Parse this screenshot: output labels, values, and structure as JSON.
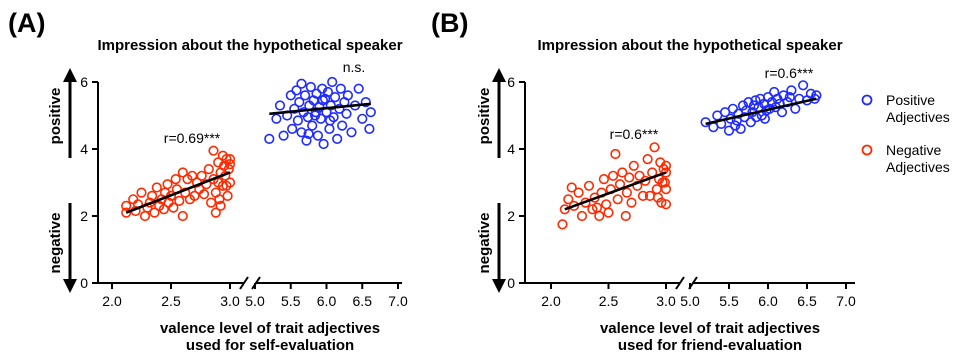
{
  "colors": {
    "positive": "#1f2bff",
    "negative": "#ff2a00",
    "axis": "#000000",
    "fit": "#000000"
  },
  "y_side_labels": {
    "top": "positive",
    "bottom": "negative"
  },
  "legend": [
    {
      "label_lines": [
        "Positive",
        "Adjectives"
      ],
      "color": "#1f2bff"
    },
    {
      "label_lines": [
        "Negative",
        "Adjectives"
      ],
      "color": "#ff2a00"
    }
  ],
  "chart_data": [
    {
      "type": "scatter",
      "panel_label": "(A)",
      "title": "Impression about the hypothetical speaker",
      "xlabel_lines": [
        "valence level of trait adjectives",
        "used for self-evaluation"
      ],
      "ylim": [
        0,
        6
      ],
      "yticks": [
        "0",
        "2",
        "4",
        "6"
      ],
      "x_break": true,
      "x_left_range": [
        1.9,
        3.0
      ],
      "x_right_range": [
        5.0,
        7.0
      ],
      "x_left_ticks": [
        "2.0",
        "2.5",
        "3.0"
      ],
      "x_right_ticks": [
        "5.0",
        "5.5",
        "6.0",
        "6.5",
        "7.0"
      ],
      "series": [
        {
          "name": "Negative Adjectives",
          "color_key": "negative",
          "points": [
            [
              2.12,
              2.1
            ],
            [
              2.12,
              2.3
            ],
            [
              2.18,
              2.5
            ],
            [
              2.2,
              2.15
            ],
            [
              2.22,
              2.35
            ],
            [
              2.25,
              2.7
            ],
            [
              2.28,
              2.0
            ],
            [
              2.3,
              2.25
            ],
            [
              2.32,
              2.4
            ],
            [
              2.34,
              2.6
            ],
            [
              2.36,
              2.1
            ],
            [
              2.38,
              2.85
            ],
            [
              2.4,
              2.3
            ],
            [
              2.42,
              2.5
            ],
            [
              2.44,
              2.2
            ],
            [
              2.45,
              2.7
            ],
            [
              2.47,
              2.95
            ],
            [
              2.48,
              2.4
            ],
            [
              2.5,
              2.6
            ],
            [
              2.52,
              2.25
            ],
            [
              2.54,
              3.1
            ],
            [
              2.55,
              2.8
            ],
            [
              2.57,
              2.45
            ],
            [
              2.6,
              2.0
            ],
            [
              2.6,
              3.3
            ],
            [
              2.62,
              2.7
            ],
            [
              2.64,
              3.1
            ],
            [
              2.66,
              2.5
            ],
            [
              2.68,
              3.2
            ],
            [
              2.7,
              2.6
            ],
            [
              2.72,
              3.0
            ],
            [
              2.74,
              2.8
            ],
            [
              2.76,
              3.2
            ],
            [
              2.78,
              2.65
            ],
            [
              2.8,
              2.95
            ],
            [
              2.82,
              3.4
            ],
            [
              2.84,
              2.4
            ],
            [
              2.86,
              3.1
            ],
            [
              2.86,
              3.95
            ],
            [
              2.88,
              2.1
            ],
            [
              2.88,
              2.7
            ],
            [
              2.9,
              3.0
            ],
            [
              2.9,
              3.6
            ],
            [
              2.92,
              2.3
            ],
            [
              2.92,
              3.3
            ],
            [
              2.94,
              2.9
            ],
            [
              2.95,
              3.5
            ],
            [
              2.96,
              3.2
            ],
            [
              2.97,
              3.7
            ],
            [
              2.98,
              2.6
            ],
            [
              2.99,
              3.4
            ],
            [
              3.0,
              3.0
            ],
            [
              3.0,
              3.55
            ],
            [
              3.0,
              3.7
            ],
            [
              2.97,
              2.9
            ],
            [
              2.94,
              3.8
            ],
            [
              2.91,
              2.5
            ]
          ],
          "fit": [
            [
              2.12,
              2.1
            ],
            [
              3.0,
              3.3
            ]
          ],
          "annotation": "r=0.69***"
        },
        {
          "name": "Positive Adjectives",
          "color_key": "positive",
          "points": [
            [
              5.2,
              4.3
            ],
            [
              5.3,
              4.9
            ],
            [
              5.35,
              5.3
            ],
            [
              5.4,
              4.4
            ],
            [
              5.45,
              5.0
            ],
            [
              5.5,
              5.6
            ],
            [
              5.52,
              4.6
            ],
            [
              5.55,
              5.2
            ],
            [
              5.58,
              5.75
            ],
            [
              5.6,
              4.85
            ],
            [
              5.62,
              5.4
            ],
            [
              5.65,
              4.5
            ],
            [
              5.68,
              5.1
            ],
            [
              5.7,
              5.6
            ],
            [
              5.72,
              4.25
            ],
            [
              5.74,
              4.95
            ],
            [
              5.76,
              5.3
            ],
            [
              5.78,
              5.85
            ],
            [
              5.8,
              4.7
            ],
            [
              5.82,
              5.45
            ],
            [
              5.84,
              5.0
            ],
            [
              5.86,
              5.65
            ],
            [
              5.88,
              4.4
            ],
            [
              5.9,
              5.25
            ],
            [
              5.92,
              4.9
            ],
            [
              5.94,
              5.8
            ],
            [
              5.96,
              4.15
            ],
            [
              5.98,
              5.5
            ],
            [
              6.0,
              5.1
            ],
            [
              6.02,
              5.7
            ],
            [
              6.04,
              4.6
            ],
            [
              6.06,
              5.3
            ],
            [
              6.08,
              6.0
            ],
            [
              6.1,
              4.95
            ],
            [
              6.12,
              5.55
            ],
            [
              6.15,
              4.3
            ],
            [
              6.18,
              5.2
            ],
            [
              6.2,
              5.8
            ],
            [
              6.22,
              4.7
            ],
            [
              6.25,
              5.4
            ],
            [
              6.28,
              5.05
            ],
            [
              6.3,
              5.6
            ],
            [
              6.35,
              4.5
            ],
            [
              6.4,
              5.3
            ],
            [
              6.45,
              5.8
            ],
            [
              6.5,
              4.9
            ],
            [
              6.55,
              5.4
            ],
            [
              6.6,
              4.6
            ],
            [
              6.62,
              5.1
            ],
            [
              5.65,
              5.95
            ],
            [
              5.75,
              4.45
            ],
            [
              5.85,
              5.1
            ],
            [
              5.95,
              5.45
            ],
            [
              6.05,
              4.85
            ]
          ],
          "fit": [
            [
              5.2,
              5.05
            ],
            [
              6.62,
              5.35
            ]
          ],
          "annotation": "n.s."
        }
      ]
    },
    {
      "type": "scatter",
      "panel_label": "(B)",
      "title": "Impression about the hypothetical speaker",
      "xlabel_lines": [
        "valence level of trait adjectives",
        "used for friend-evaluation"
      ],
      "ylim": [
        0,
        6
      ],
      "yticks": [
        "0",
        "2",
        "4",
        "6"
      ],
      "x_break": true,
      "x_left_range": [
        1.9,
        3.0
      ],
      "x_right_range": [
        5.0,
        7.0
      ],
      "x_left_ticks": [
        "2.0",
        "2.5",
        "3.0"
      ],
      "x_right_ticks": [
        "5.0",
        "5.5",
        "6.0",
        "6.5",
        "7.0"
      ],
      "series": [
        {
          "name": "Negative Adjectives",
          "color_key": "negative",
          "points": [
            [
              2.1,
              1.75
            ],
            [
              2.12,
              2.2
            ],
            [
              2.15,
              2.5
            ],
            [
              2.18,
              2.85
            ],
            [
              2.2,
              2.3
            ],
            [
              2.24,
              2.7
            ],
            [
              2.27,
              2.0
            ],
            [
              2.3,
              2.4
            ],
            [
              2.33,
              2.9
            ],
            [
              2.36,
              2.2
            ],
            [
              2.38,
              2.55
            ],
            [
              2.4,
              2.25
            ],
            [
              2.42,
              2.0
            ],
            [
              2.44,
              2.7
            ],
            [
              2.46,
              3.1
            ],
            [
              2.48,
              2.35
            ],
            [
              2.5,
              2.1
            ],
            [
              2.52,
              2.8
            ],
            [
              2.54,
              3.2
            ],
            [
              2.56,
              3.85
            ],
            [
              2.58,
              2.5
            ],
            [
              2.6,
              2.95
            ],
            [
              2.62,
              3.3
            ],
            [
              2.65,
              2.0
            ],
            [
              2.66,
              2.7
            ],
            [
              2.68,
              3.15
            ],
            [
              2.7,
              2.4
            ],
            [
              2.72,
              3.5
            ],
            [
              2.75,
              2.9
            ],
            [
              2.77,
              3.2
            ],
            [
              2.8,
              2.6
            ],
            [
              2.82,
              3.05
            ],
            [
              2.84,
              3.7
            ],
            [
              2.86,
              2.6
            ],
            [
              2.88,
              3.3
            ],
            [
              2.9,
              4.05
            ],
            [
              2.92,
              2.8
            ],
            [
              2.94,
              3.1
            ],
            [
              2.95,
              3.6
            ],
            [
              2.96,
              2.4
            ],
            [
              2.98,
              3.4
            ],
            [
              2.99,
              3.0
            ],
            [
              3.0,
              3.5
            ],
            [
              3.0,
              2.8
            ],
            [
              3.0,
              3.3
            ],
            [
              3.0,
              2.35
            ],
            [
              2.97,
              3.0
            ],
            [
              2.93,
              2.55
            ]
          ],
          "fit": [
            [
              2.12,
              2.2
            ],
            [
              3.0,
              3.3
            ]
          ],
          "annotation": "r=0.6***"
        },
        {
          "name": "Positive Adjectives",
          "color_key": "positive",
          "points": [
            [
              5.2,
              4.8
            ],
            [
              5.3,
              4.65
            ],
            [
              5.35,
              5.0
            ],
            [
              5.4,
              4.75
            ],
            [
              5.45,
              5.1
            ],
            [
              5.5,
              4.55
            ],
            [
              5.52,
              4.9
            ],
            [
              5.55,
              5.2
            ],
            [
              5.6,
              4.85
            ],
            [
              5.62,
              5.05
            ],
            [
              5.65,
              4.6
            ],
            [
              5.68,
              5.3
            ],
            [
              5.7,
              4.95
            ],
            [
              5.72,
              5.15
            ],
            [
              5.75,
              5.4
            ],
            [
              5.78,
              4.8
            ],
            [
              5.8,
              5.1
            ],
            [
              5.82,
              5.3
            ],
            [
              5.85,
              4.95
            ],
            [
              5.88,
              5.25
            ],
            [
              5.9,
              5.5
            ],
            [
              5.92,
              5.0
            ],
            [
              5.95,
              5.35
            ],
            [
              5.98,
              5.15
            ],
            [
              6.0,
              5.55
            ],
            [
              6.02,
              5.2
            ],
            [
              6.05,
              5.4
            ],
            [
              6.08,
              5.7
            ],
            [
              6.1,
              5.25
            ],
            [
              6.12,
              5.5
            ],
            [
              6.15,
              5.35
            ],
            [
              6.2,
              5.6
            ],
            [
              6.25,
              5.4
            ],
            [
              6.3,
              5.75
            ],
            [
              6.35,
              5.2
            ],
            [
              6.4,
              5.5
            ],
            [
              6.45,
              5.9
            ],
            [
              6.5,
              5.45
            ],
            [
              6.55,
              5.65
            ],
            [
              6.6,
              5.5
            ],
            [
              6.62,
              5.6
            ],
            [
              5.58,
              4.7
            ],
            [
              5.84,
              5.45
            ],
            [
              6.18,
              5.1
            ],
            [
              5.96,
              4.9
            ],
            [
              6.28,
              5.55
            ]
          ],
          "fit": [
            [
              5.2,
              4.75
            ],
            [
              6.62,
              5.5
            ]
          ],
          "annotation": "r=0.6***"
        }
      ]
    }
  ]
}
